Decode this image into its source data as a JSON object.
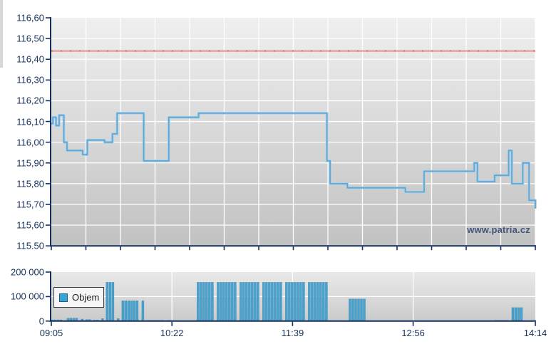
{
  "watermark": "www.patria.cz",
  "legend": {
    "label": "Objem"
  },
  "colors": {
    "axis": "#15315d",
    "label_text": "#1a3560",
    "grid": "#ffffff",
    "plot_bg_top": "#efefef",
    "plot_bg_bottom": "#c2c2c2",
    "vol_bg_top": "#e9e9e9",
    "vol_bg_bottom": "#cbcbcb",
    "price_line": "#5fa8d5",
    "price_line_halo": "#a9cfe7",
    "ref_line": "#e79d99",
    "ref_line_dash": "#c96b66",
    "volume_bar": "#48a2cf",
    "volume_bar_edge": "#3186ad"
  },
  "chart_data": [
    {
      "type": "line",
      "name": "price-intraday",
      "y_axis": {
        "min": 115.5,
        "max": 116.6,
        "ticks": [
          {
            "label": "116,60",
            "value": 116.6
          },
          {
            "label": "116,50",
            "value": 116.5
          },
          {
            "label": "116,40",
            "value": 116.4
          },
          {
            "label": "116,30",
            "value": 116.3
          },
          {
            "label": "116,20",
            "value": 116.2
          },
          {
            "label": "116,10",
            "value": 116.1
          },
          {
            "label": "116,00",
            "value": 116.0
          },
          {
            "label": "115,90",
            "value": 115.9
          },
          {
            "label": "115,80",
            "value": 115.8
          },
          {
            "label": "115,70",
            "value": 115.7
          },
          {
            "label": "115,60",
            "value": 115.6
          },
          {
            "label": "115.50",
            "value": 115.5
          }
        ],
        "grid_values": [
          116.5,
          116.4,
          116.3,
          116.2,
          116.1,
          116.0,
          115.9,
          115.8,
          115.7,
          115.6
        ]
      },
      "x_axis": {
        "start": "09:05",
        "end": "14:14",
        "labels": [
          "09:05",
          "10:22",
          "11:39",
          "12:56",
          "14:14"
        ],
        "minor_tick_count": 15
      },
      "reference_line": {
        "value": 116.44
      },
      "series": [
        {
          "name": "price",
          "step_points": [
            {
              "t": "09:05",
              "v": 116.09
            },
            {
              "t": "09:06",
              "v": 116.12
            },
            {
              "t": "09:08",
              "v": 116.08
            },
            {
              "t": "09:10",
              "v": 116.13
            },
            {
              "t": "09:13",
              "v": 116.0
            },
            {
              "t": "09:15",
              "v": 115.96
            },
            {
              "t": "09:25",
              "v": 115.94
            },
            {
              "t": "09:28",
              "v": 116.01
            },
            {
              "t": "09:39",
              "v": 116.0
            },
            {
              "t": "09:44",
              "v": 116.04
            },
            {
              "t": "09:47",
              "v": 116.14
            },
            {
              "t": "10:04",
              "v": 115.91
            },
            {
              "t": "10:20",
              "v": 116.12
            },
            {
              "t": "10:39",
              "v": 116.14
            },
            {
              "t": "12:01",
              "v": 115.91
            },
            {
              "t": "12:03",
              "v": 115.8
            },
            {
              "t": "12:14",
              "v": 115.78
            },
            {
              "t": "12:51",
              "v": 115.76
            },
            {
              "t": "13:03",
              "v": 115.86
            },
            {
              "t": "13:35",
              "v": 115.9
            },
            {
              "t": "13:37",
              "v": 115.81
            },
            {
              "t": "13:48",
              "v": 115.84
            },
            {
              "t": "13:57",
              "v": 115.96
            },
            {
              "t": "13:59",
              "v": 115.8
            },
            {
              "t": "14:06",
              "v": 115.9
            },
            {
              "t": "14:10",
              "v": 115.72
            },
            {
              "t": "14:14",
              "v": 115.68
            }
          ]
        }
      ]
    },
    {
      "type": "bar",
      "name": "volume",
      "legend_label": "Objem",
      "y_axis": {
        "min": 0,
        "max": 200000,
        "ticks": [
          {
            "label": "200 000",
            "value": 200000
          },
          {
            "label": "100 000",
            "value": 100000
          },
          {
            "label": "0",
            "value": 0
          }
        ],
        "grid_values": [
          100000
        ]
      },
      "x_axis": {
        "start": "09:05",
        "end": "14:14",
        "labels": [
          "09:05",
          "10:22",
          "11:39",
          "12:56",
          "14:14"
        ],
        "grid_labels": [
          "10:22",
          "11:39",
          "12:56"
        ]
      },
      "bar_clusters": [
        {
          "from": "09:05",
          "to": "09:13",
          "value": 5000
        },
        {
          "from": "09:15",
          "to": "09:23",
          "value": 12000
        },
        {
          "from": "09:24",
          "to": "09:26",
          "value": 8000
        },
        {
          "from": "09:27",
          "to": "09:31",
          "value": 6000
        },
        {
          "from": "09:32",
          "to": "09:36",
          "value": 4000
        },
        {
          "from": "09:37",
          "to": "09:39",
          "value": 10000
        },
        {
          "from": "09:40",
          "to": "09:46",
          "value": 158000
        },
        {
          "from": "09:47",
          "to": "09:49",
          "value": 10000
        },
        {
          "from": "09:50",
          "to": "10:04",
          "value": 83000
        },
        {
          "from": "10:06",
          "to": "10:22",
          "value": 3000
        },
        {
          "from": "10:38",
          "to": "12:01",
          "value": 158000
        },
        {
          "from": "12:01",
          "to": "12:13",
          "value": 2000
        },
        {
          "from": "12:15",
          "to": "12:26",
          "value": 90000
        },
        {
          "from": "13:48",
          "to": "13:58",
          "value": 3000
        },
        {
          "from": "13:59",
          "to": "14:06",
          "value": 55000
        }
      ]
    }
  ]
}
